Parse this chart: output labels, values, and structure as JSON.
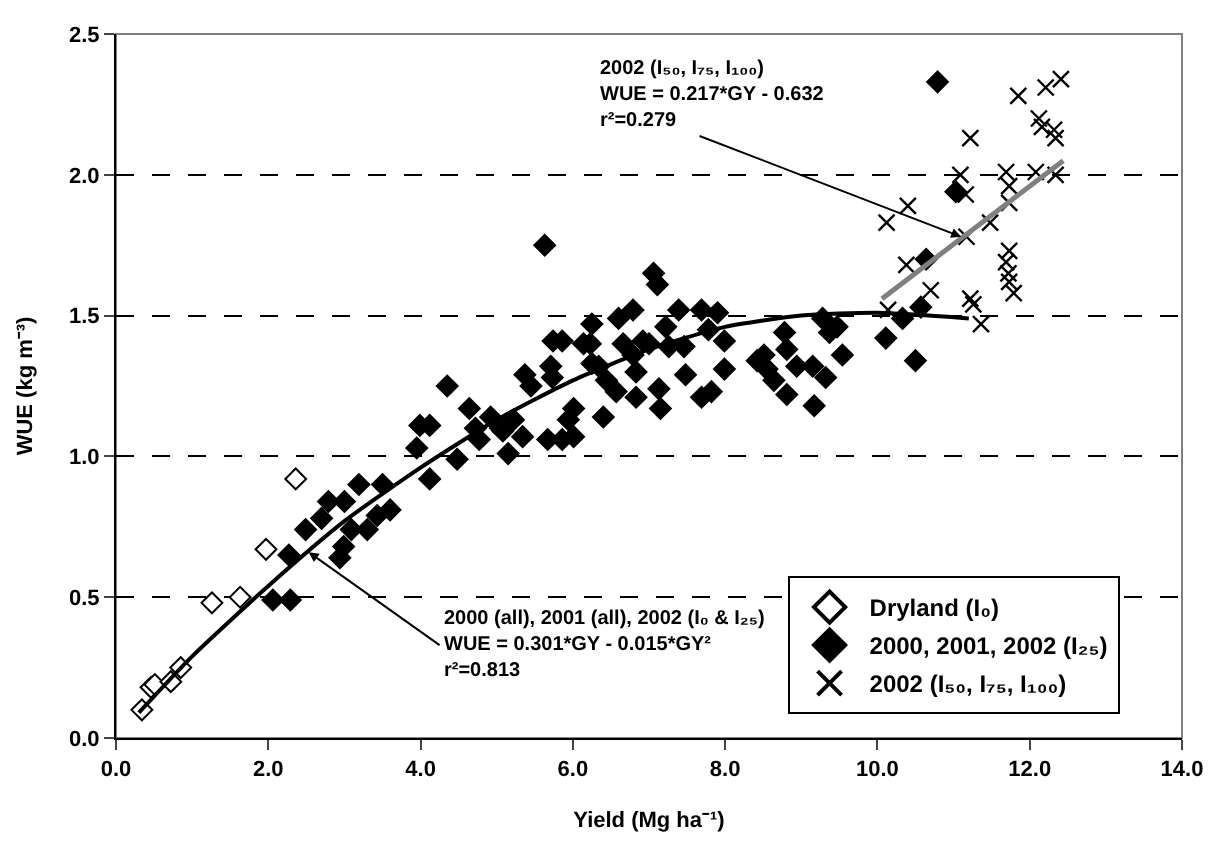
{
  "chart_data": {
    "type": "scatter",
    "xlabel": "Yield (Mg ha⁻¹)",
    "ylabel": "WUE (kg m⁻³)",
    "xlim": [
      0,
      14
    ],
    "ylim": [
      0,
      2.5
    ],
    "xticks": [
      {
        "value": 0,
        "label": "0.0"
      },
      {
        "value": 2,
        "label": "2.0"
      },
      {
        "value": 4,
        "label": "4.0"
      },
      {
        "value": 6,
        "label": "6.0"
      },
      {
        "value": 8,
        "label": "8.0"
      },
      {
        "value": 10,
        "label": "10.0"
      },
      {
        "value": 12,
        "label": "12.0"
      },
      {
        "value": 14,
        "label": "14.0"
      }
    ],
    "yticks": [
      {
        "value": 0,
        "label": "0.0"
      },
      {
        "value": 0.5,
        "label": "0.5"
      },
      {
        "value": 1,
        "label": "1.0"
      },
      {
        "value": 1.5,
        "label": "1.5"
      },
      {
        "value": 2,
        "label": "2.0"
      },
      {
        "value": 2.5,
        "label": "2.5"
      }
    ],
    "grid": "y",
    "legend": "bottom right",
    "series": [
      {
        "name": "Dryland (I₀)",
        "marker": "diamond",
        "color": "#ffffff",
        "x": [
          0.34,
          0.46,
          0.51,
          0.72,
          0.85,
          1.26,
          1.63,
          1.97,
          2.36
        ],
        "values": [
          0.1,
          0.18,
          0.19,
          0.2,
          0.25,
          0.48,
          0.5,
          0.67,
          0.92
        ]
      },
      {
        "name": "2000, 2001, 2002 (I₂₅)",
        "marker": "diamond",
        "color": "#000000",
        "x": [
          2.06,
          2.29,
          2.27,
          2.49,
          2.7,
          2.79,
          3.0,
          3.19,
          3.5,
          3.6,
          3.43,
          3.3,
          3.09,
          2.99,
          2.94,
          3.95,
          3.99,
          4.12,
          4.12,
          4.35,
          4.48,
          4.64,
          4.72,
          4.77,
          4.92,
          5.05,
          5.15,
          5.08,
          5.22,
          5.34,
          5.37,
          5.45,
          5.63,
          5.67,
          5.74,
          5.86,
          5.71,
          5.73,
          5.86,
          6.01,
          5.94,
          6.01,
          6.14,
          6.23,
          6.25,
          6.25,
          6.34,
          6.44,
          6.4,
          6.57,
          6.6,
          6.66,
          6.79,
          6.79,
          6.83,
          6.83,
          6.92,
          7.0,
          7.06,
          7.11,
          7.13,
          7.15,
          7.22,
          7.26,
          7.39,
          7.48,
          7.46,
          7.69,
          7.78,
          7.69,
          7.82,
          7.9,
          7.99,
          7.99,
          8.78,
          8.81,
          8.42,
          8.51,
          8.55,
          8.64,
          8.81,
          8.94,
          9.15,
          9.17,
          9.32,
          9.28,
          9.37,
          9.47,
          9.54,
          10.11,
          10.33,
          10.5,
          10.57,
          10.64,
          11.03,
          10.79
        ],
        "values": [
          0.49,
          0.49,
          0.65,
          0.74,
          0.78,
          0.84,
          0.84,
          0.9,
          0.9,
          0.81,
          0.79,
          0.74,
          0.74,
          0.68,
          0.64,
          1.03,
          1.11,
          1.11,
          0.92,
          1.25,
          0.99,
          1.17,
          1.1,
          1.06,
          1.14,
          1.1,
          1.01,
          1.09,
          1.13,
          1.07,
          1.29,
          1.25,
          1.75,
          1.06,
          1.41,
          1.41,
          1.32,
          1.28,
          1.06,
          1.07,
          1.13,
          1.17,
          1.4,
          1.4,
          1.47,
          1.33,
          1.32,
          1.27,
          1.14,
          1.23,
          1.49,
          1.4,
          1.52,
          1.36,
          1.3,
          1.21,
          1.41,
          1.4,
          1.65,
          1.61,
          1.24,
          1.17,
          1.46,
          1.39,
          1.52,
          1.29,
          1.39,
          1.52,
          1.45,
          1.21,
          1.23,
          1.51,
          1.41,
          1.31,
          1.44,
          1.38,
          1.34,
          1.36,
          1.31,
          1.27,
          1.22,
          1.32,
          1.32,
          1.18,
          1.28,
          1.49,
          1.44,
          1.46,
          1.36,
          1.42,
          1.49,
          1.34,
          1.53,
          1.7,
          1.94,
          2.33
        ]
      },
      {
        "name": "2002 (I₅₀, I₇₅, I₁₀₀)",
        "marker": "cross",
        "color": "#000000",
        "x": [
          10.12,
          10.4,
          10.38,
          10.14,
          10.7,
          11.09,
          11.16,
          11.22,
          11.17,
          11.22,
          11.26,
          11.36,
          11.48,
          11.69,
          11.73,
          11.73,
          11.73,
          11.69,
          11.72,
          11.73,
          11.79,
          11.85,
          12.08,
          12.12,
          12.16,
          12.21,
          12.32,
          12.34,
          12.34,
          12.41
        ],
        "values": [
          1.83,
          1.89,
          1.68,
          1.52,
          1.59,
          2.0,
          1.93,
          2.13,
          1.78,
          1.56,
          1.54,
          1.47,
          1.83,
          2.01,
          1.96,
          1.9,
          1.73,
          1.69,
          1.65,
          1.62,
          1.58,
          2.28,
          2.01,
          2.2,
          2.17,
          2.31,
          2.16,
          2.13,
          2.0,
          2.34
        ]
      },
      {
        "type": "line",
        "marker": "none",
        "line_style": "solid",
        "color": "#000000",
        "x": [
          0.3,
          1,
          2,
          3,
          4,
          5,
          6,
          7,
          8,
          9,
          10,
          11.2
        ],
        "values": [
          0.09,
          0.29,
          0.54,
          0.77,
          0.96,
          1.13,
          1.27,
          1.38,
          1.46,
          1.5,
          1.51,
          1.49
        ]
      },
      {
        "type": "line",
        "marker": "none",
        "line_style": "solid",
        "color": "#808080",
        "x": [
          10.06,
          12.44
        ],
        "values": [
          1.56,
          2.05
        ]
      }
    ],
    "annotations": [
      {
        "text": "2002 (I₅₀, I₇₅, I₁₀₀)\nWUE = 0.217*GY - 0.632\nr²=0.279",
        "x": 11.1,
        "y": 1.78
      },
      {
        "text": "2000 (all), 2001 (all), 2002 (I₀ & I₂₅)\nWUE = 0.301*GY - 0.015*GY²\nr²=0.813",
        "x": 2.53,
        "y": 0.66
      }
    ]
  }
}
